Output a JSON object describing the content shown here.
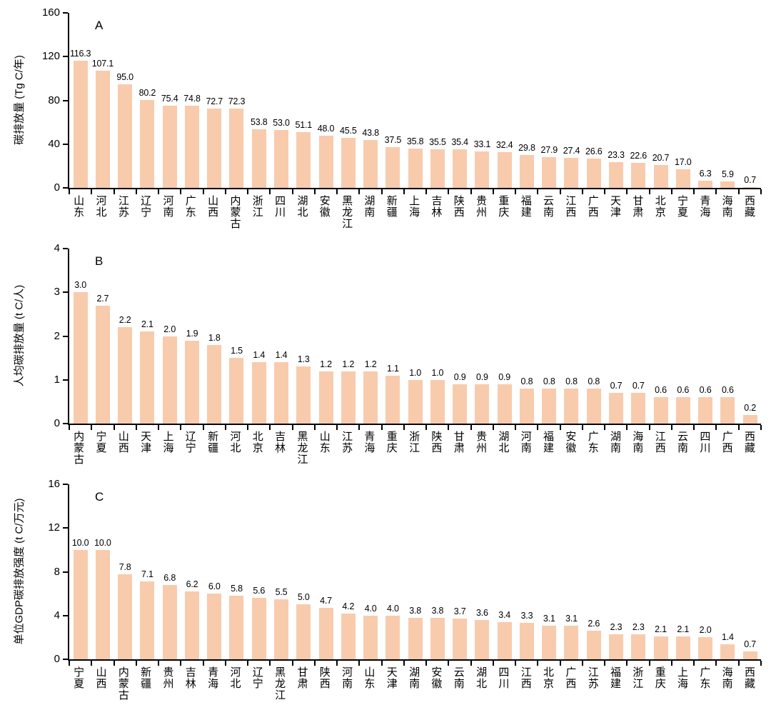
{
  "figure": {
    "bar_color": "#F8CBAD",
    "axis_color": "#000000",
    "background": "#ffffff"
  },
  "chart_data": [
    {
      "type": "bar",
      "panel_label": "A",
      "title": "",
      "xlabel": "",
      "ylabel": "碳排放量 (Tg C/年)",
      "ylim": [
        0,
        160
      ],
      "yticks": [
        0,
        40,
        80,
        120,
        160
      ],
      "grid": "off",
      "legend": "none",
      "categories": [
        "山东",
        "河北",
        "江苏",
        "辽宁",
        "河南",
        "广东",
        "山西",
        "内蒙古",
        "浙江",
        "四川",
        "湖北",
        "安徽",
        "黑龙江",
        "湖南",
        "新疆",
        "上海",
        "吉林",
        "陕西",
        "贵州",
        "重庆",
        "福建",
        "云南",
        "江西",
        "广西",
        "天津",
        "甘肃",
        "北京",
        "宁夏",
        "青海",
        "海南",
        "西藏"
      ],
      "values": [
        116.3,
        107.1,
        95.0,
        80.2,
        75.4,
        74.8,
        72.7,
        72.3,
        53.8,
        53.0,
        51.1,
        48.0,
        45.5,
        43.8,
        37.5,
        35.8,
        35.5,
        35.4,
        33.1,
        32.4,
        29.8,
        27.9,
        27.4,
        26.6,
        23.3,
        22.6,
        20.7,
        17.0,
        6.3,
        5.9,
        0.7
      ]
    },
    {
      "type": "bar",
      "panel_label": "B",
      "title": "",
      "xlabel": "",
      "ylabel": "人均碳排放量 (t C/人)",
      "ylim": [
        0,
        4
      ],
      "yticks": [
        0,
        1,
        2,
        3,
        4
      ],
      "grid": "off",
      "legend": "none",
      "categories": [
        "内蒙古",
        "宁夏",
        "山西",
        "天津",
        "上海",
        "辽宁",
        "新疆",
        "河北",
        "北京",
        "吉林",
        "黑龙江",
        "山东",
        "江苏",
        "青海",
        "重庆",
        "浙江",
        "陕西",
        "甘肃",
        "贵州",
        "湖北",
        "河南",
        "福建",
        "安徽",
        "广东",
        "湖南",
        "海南",
        "江西",
        "云南",
        "四川",
        "广西",
        "西藏"
      ],
      "values": [
        3.0,
        2.7,
        2.2,
        2.1,
        2.0,
        1.9,
        1.8,
        1.5,
        1.4,
        1.4,
        1.3,
        1.2,
        1.2,
        1.2,
        1.1,
        1.0,
        1.0,
        0.9,
        0.9,
        0.9,
        0.8,
        0.8,
        0.8,
        0.8,
        0.7,
        0.7,
        0.6,
        0.6,
        0.6,
        0.6,
        0.2
      ]
    },
    {
      "type": "bar",
      "panel_label": "C",
      "title": "",
      "xlabel": "",
      "ylabel": "单位GDP碳排放强度 (t C/万元)",
      "ylim": [
        0,
        16
      ],
      "yticks": [
        0,
        4,
        8,
        12,
        16
      ],
      "grid": "off",
      "legend": "none",
      "categories": [
        "宁夏",
        "山西",
        "内蒙古",
        "新疆",
        "贵州",
        "吉林",
        "青海",
        "河北",
        "辽宁",
        "黑龙江",
        "甘肃",
        "陕西",
        "河南",
        "山东",
        "天津",
        "湖南",
        "安徽",
        "云南",
        "湖北",
        "四川",
        "江西",
        "北京",
        "广西",
        "江苏",
        "福建",
        "浙江",
        "重庆",
        "上海",
        "广东",
        "海南",
        "西藏"
      ],
      "values": [
        10.0,
        10.0,
        7.8,
        7.1,
        6.8,
        6.2,
        6.0,
        5.8,
        5.6,
        5.5,
        5.0,
        4.7,
        4.2,
        4.0,
        4.0,
        3.8,
        3.8,
        3.7,
        3.6,
        3.4,
        3.3,
        3.1,
        3.1,
        2.6,
        2.3,
        2.3,
        2.1,
        2.1,
        2.0,
        1.4,
        0.7
      ]
    }
  ]
}
